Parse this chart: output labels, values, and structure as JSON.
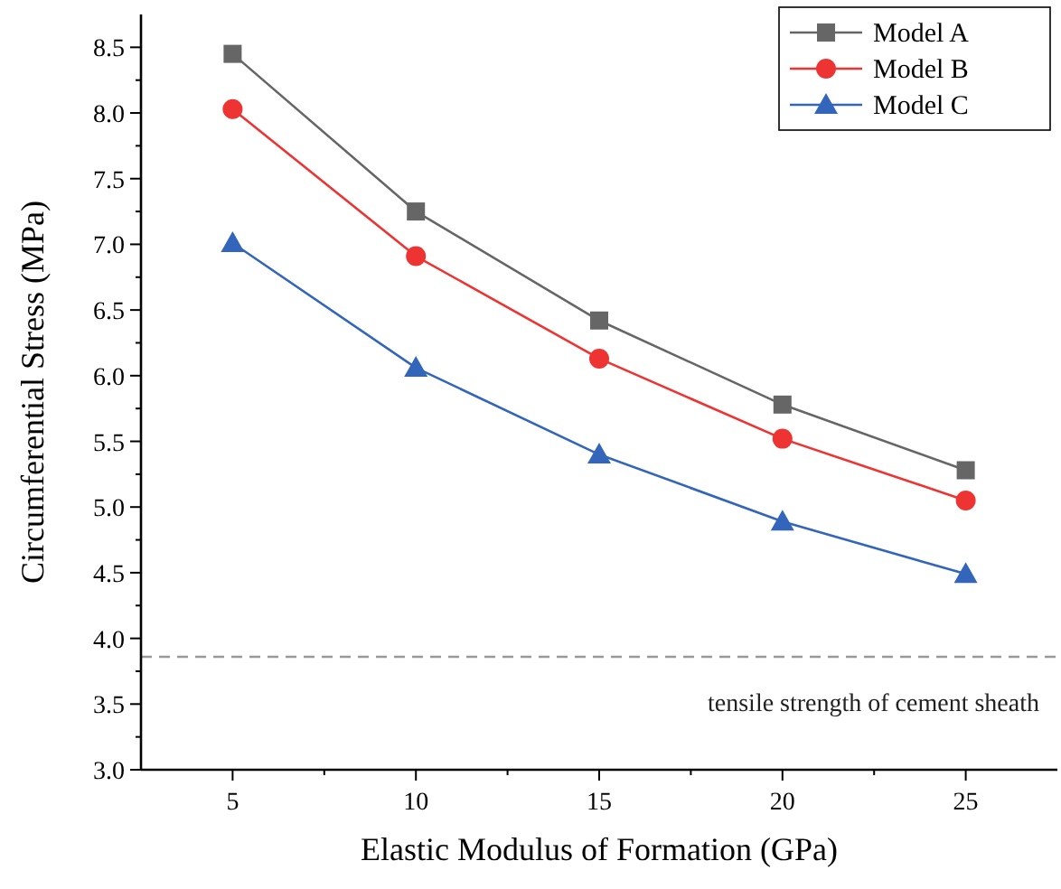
{
  "chart_data": {
    "type": "line",
    "xlabel": "Elastic Modulus of Formation (GPa)",
    "ylabel": "Circumferential Stress (MPa)",
    "x": [
      5,
      10,
      15,
      20,
      25
    ],
    "xlim": [
      2.5,
      27.5
    ],
    "xticks": [
      5,
      10,
      15,
      20,
      25
    ],
    "ylim": [
      3.0,
      8.75
    ],
    "yticks": [
      {
        "value": 3,
        "label": "3.0"
      },
      {
        "value": 3.5,
        "label": "3.5"
      },
      {
        "value": 4,
        "label": "4.0"
      },
      {
        "value": 4.5,
        "label": "4.5"
      },
      {
        "value": 5,
        "label": "5.0"
      },
      {
        "value": 5.5,
        "label": "5.5"
      },
      {
        "value": 6,
        "label": "6.0"
      },
      {
        "value": 6.5,
        "label": "6.5"
      },
      {
        "value": 7,
        "label": "7.0"
      },
      {
        "value": 7.5,
        "label": "7.5"
      },
      {
        "value": 8,
        "label": "8.0"
      },
      {
        "value": 8.5,
        "label": "8.5"
      }
    ],
    "series": [
      {
        "name": "Model A",
        "color": "#666666",
        "marker": "square",
        "values": [
          8.45,
          7.25,
          6.42,
          5.78,
          5.28
        ]
      },
      {
        "name": "Model B",
        "color": "#ee3333",
        "marker": "circle",
        "values": [
          8.03,
          6.91,
          6.13,
          5.52,
          5.05
        ]
      },
      {
        "name": "Model C",
        "color": "#3366bb",
        "marker": "triangle",
        "values": [
          7.01,
          6.06,
          5.4,
          4.89,
          4.49
        ]
      }
    ],
    "ref_lines": [
      {
        "axis": "y",
        "value": 3.86,
        "label": "tensile strength of cement sheath",
        "color": "#999999",
        "line_style": "dashed"
      }
    ],
    "legend": "top right",
    "grid": false
  }
}
